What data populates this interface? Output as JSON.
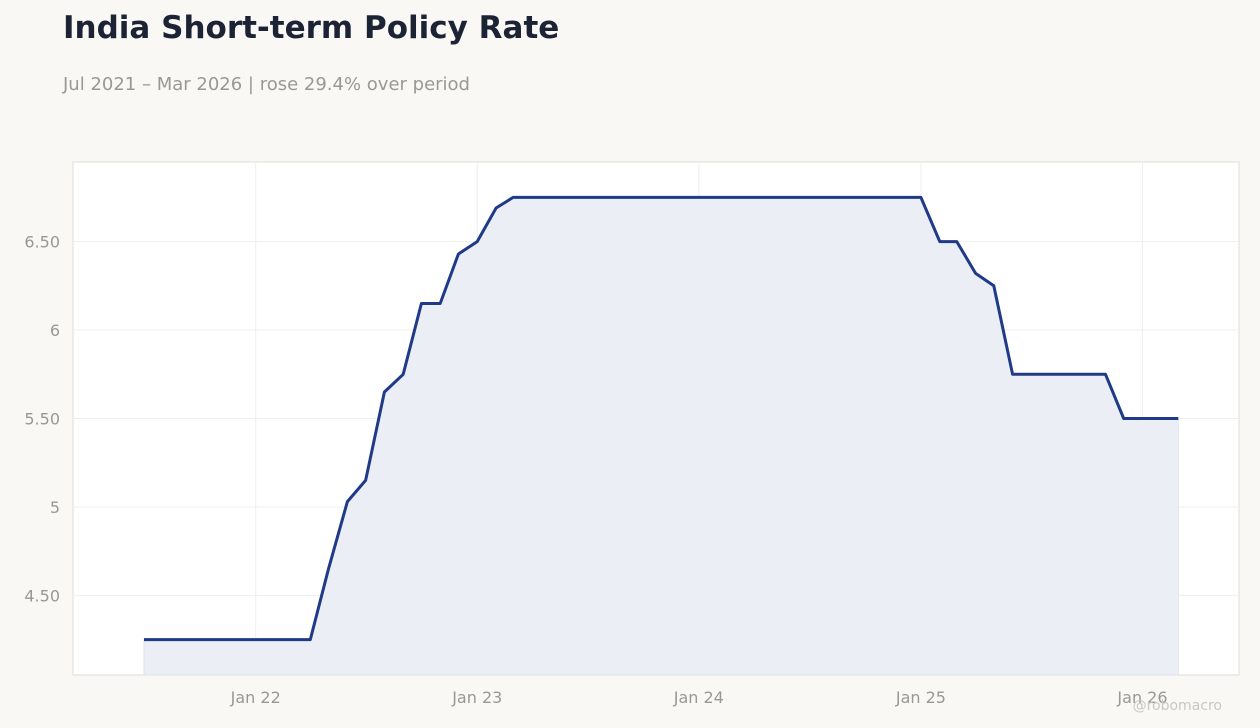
{
  "header": {
    "title": "India Short-term Policy Rate",
    "subtitle": "Jul 2021 – Mar 2026 | rose 29.4% over period"
  },
  "watermark": "@robomacro",
  "colors": {
    "background": "#f9f8f5",
    "plot_background": "#ffffff",
    "line": "#1f3a87",
    "fill": "#eceef5",
    "grid": "#efefef",
    "text_muted": "#999893"
  },
  "chart_data": {
    "type": "area",
    "title": "India Short-term Policy Rate",
    "subtitle": "Jul 2021 – Mar 2026 | rose 29.4% over period",
    "xlabel": "",
    "ylabel": "",
    "grid": true,
    "ylim": [
      4.05,
      6.95
    ],
    "xlim": [
      "2021-03-06",
      "2026-06-09"
    ],
    "x_ticks": [
      {
        "value": "2022-01-01",
        "label": "Jan 22"
      },
      {
        "value": "2023-01-01",
        "label": "Jan 23"
      },
      {
        "value": "2024-01-01",
        "label": "Jan 24"
      },
      {
        "value": "2025-01-01",
        "label": "Jan 25"
      },
      {
        "value": "2026-01-01",
        "label": "Jan 26"
      }
    ],
    "y_ticks": [
      {
        "value": 4.5,
        "label": "4.50"
      },
      {
        "value": 5,
        "label": "5"
      },
      {
        "value": 5.5,
        "label": "5.50"
      },
      {
        "value": 6,
        "label": "6"
      },
      {
        "value": 6.5,
        "label": "6.50"
      }
    ],
    "series": [
      {
        "x": [
          "2021-07-01",
          "2022-04-01",
          "2022-05-01",
          "2022-06-01",
          "2022-07-01",
          "2022-08-01",
          "2022-09-01",
          "2022-10-01",
          "2022-11-01",
          "2022-12-01",
          "2023-01-01",
          "2023-02-01",
          "2023-03-01",
          "2025-01-01",
          "2025-02-01",
          "2025-03-01",
          "2025-04-01",
          "2025-05-01",
          "2025-06-01",
          "2025-11-01",
          "2025-12-01",
          "2026-03-01"
        ],
        "values": [
          4.25,
          4.25,
          4.65,
          5.03,
          5.15,
          5.65,
          5.75,
          6.15,
          6.15,
          6.43,
          6.5,
          6.69,
          6.75,
          6.75,
          6.5,
          6.5,
          6.32,
          6.25,
          5.75,
          5.75,
          5.5,
          5.5
        ]
      }
    ]
  }
}
